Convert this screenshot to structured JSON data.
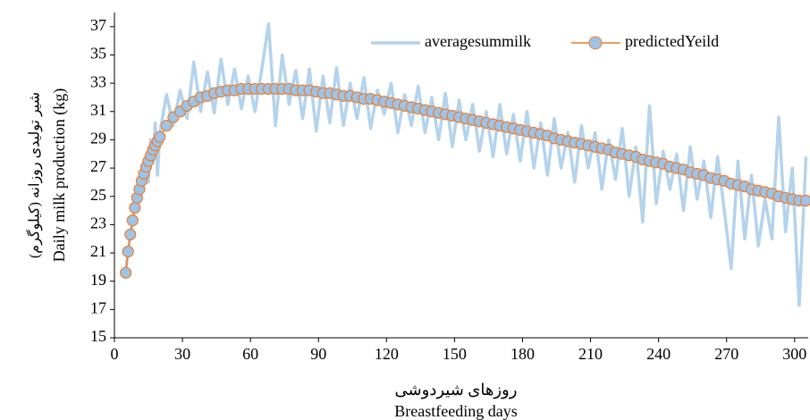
{
  "chart_data": {
    "type": "line",
    "x_title_fa": "روزهای شیردوشی",
    "x_title": "Breastfeeding days",
    "y_title_fa": "شیر تولیدی روزانه (کیلوگرم)",
    "y_title": "Daily milk production (kg)",
    "legend": "top-right",
    "grid": false,
    "xlim": [
      0,
      306
    ],
    "xticks": [
      0,
      30,
      60,
      90,
      120,
      150,
      180,
      210,
      240,
      270,
      300
    ],
    "ylim": [
      15,
      38
    ],
    "yticks": [
      15,
      17,
      19,
      21,
      23,
      25,
      27,
      29,
      31,
      33,
      35,
      37
    ],
    "x": [
      5,
      6,
      7,
      8,
      9,
      10,
      11,
      12,
      13,
      14,
      15,
      16,
      17,
      18,
      19,
      20,
      23,
      26,
      29,
      32,
      35,
      38,
      41,
      44,
      47,
      50,
      53,
      56,
      59,
      62,
      65,
      68,
      71,
      74,
      77,
      80,
      83,
      86,
      89,
      92,
      95,
      98,
      101,
      104,
      107,
      110,
      113,
      116,
      119,
      122,
      125,
      128,
      131,
      134,
      137,
      140,
      143,
      146,
      149,
      152,
      155,
      158,
      161,
      164,
      167,
      170,
      173,
      176,
      179,
      182,
      185,
      188,
      191,
      194,
      197,
      200,
      203,
      206,
      209,
      212,
      215,
      218,
      221,
      224,
      227,
      230,
      233,
      236,
      239,
      242,
      245,
      248,
      251,
      254,
      257,
      260,
      263,
      266,
      269,
      272,
      275,
      278,
      281,
      284,
      287,
      290,
      293,
      296,
      299,
      302,
      305
    ],
    "series": [
      {
        "name": "averagesummilk",
        "color": "#b4d3ec",
        "marker": "none",
        "values": [
          19.8,
          21.0,
          22.5,
          23.0,
          24.5,
          24.6,
          25.9,
          25.8,
          26.9,
          27.0,
          26.0,
          29.0,
          27.5,
          30.2,
          26.5,
          29.5,
          32.2,
          30.0,
          32.5,
          30.5,
          34.5,
          31.0,
          33.8,
          30.9,
          34.7,
          31.5,
          34.0,
          31.2,
          33.5,
          31.0,
          34.0,
          37.2,
          30.0,
          35.0,
          31.5,
          33.9,
          30.5,
          34.0,
          29.6,
          33.5,
          30.2,
          34.1,
          30.0,
          33.0,
          30.5,
          33.4,
          29.8,
          32.5,
          30.8,
          33.0,
          29.5,
          32.2,
          30.0,
          32.8,
          29.5,
          32.0,
          29.0,
          32.3,
          28.5,
          31.8,
          29.0,
          31.5,
          28.2,
          31.0,
          27.8,
          31.5,
          28.0,
          30.8,
          27.5,
          31.0,
          27.0,
          30.2,
          26.5,
          30.5,
          27.0,
          29.5,
          26.0,
          30.0,
          27.0,
          29.5,
          25.5,
          29.0,
          26.2,
          29.8,
          25.0,
          28.5,
          23.2,
          31.4,
          24.5,
          28.2,
          25.5,
          28.0,
          24.0,
          28.5,
          24.8,
          27.5,
          23.5,
          27.8,
          24.0,
          19.9,
          27.5,
          22.0,
          26.5,
          21.5,
          24.8,
          22.0,
          30.6,
          22.5,
          27.0,
          17.3,
          27.8
        ]
      },
      {
        "name": "predictedYeild",
        "color": "#ed7d31",
        "fill": "#9dc3e6",
        "marker": "circle",
        "values": [
          19.6,
          21.1,
          22.3,
          23.3,
          24.2,
          24.9,
          25.5,
          26.1,
          26.6,
          27.1,
          27.5,
          27.9,
          28.3,
          28.6,
          28.9,
          29.2,
          30.0,
          30.6,
          31.0,
          31.4,
          31.7,
          32.0,
          32.1,
          32.3,
          32.4,
          32.5,
          32.5,
          32.6,
          32.6,
          32.6,
          32.6,
          32.6,
          32.6,
          32.6,
          32.6,
          32.5,
          32.5,
          32.5,
          32.4,
          32.3,
          32.3,
          32.2,
          32.1,
          32.1,
          32.0,
          31.9,
          31.9,
          31.8,
          31.7,
          31.6,
          31.5,
          31.4,
          31.3,
          31.2,
          31.1,
          31.0,
          30.9,
          30.8,
          30.7,
          30.6,
          30.5,
          30.4,
          30.3,
          30.2,
          30.1,
          30.0,
          29.9,
          29.8,
          29.7,
          29.6,
          29.5,
          29.4,
          29.3,
          29.1,
          29.0,
          28.9,
          28.8,
          28.7,
          28.6,
          28.5,
          28.4,
          28.3,
          28.1,
          28.0,
          27.9,
          27.8,
          27.6,
          27.5,
          27.4,
          27.3,
          27.1,
          27.0,
          26.9,
          26.7,
          26.6,
          26.5,
          26.3,
          26.2,
          26.1,
          25.9,
          25.8,
          25.7,
          25.5,
          25.4,
          25.3,
          25.2,
          25.0,
          24.9,
          24.8,
          24.7,
          24.7
        ]
      }
    ]
  }
}
